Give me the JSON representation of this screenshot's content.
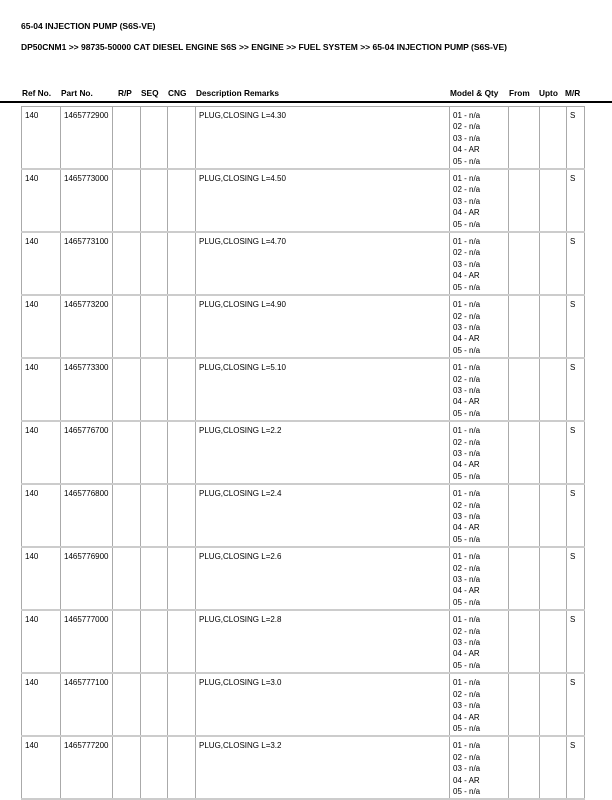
{
  "title": "65-04 INJECTION PUMP (S6S-VE)",
  "breadcrumb": "DP50CNM1 >> 98735-50000 CAT DIESEL ENGINE S6S >> ENGINE >> FUEL SYSTEM >> 65-04 INJECTION PUMP (S6S-VE)",
  "headers": {
    "ref": "Ref No.",
    "part": "Part No.",
    "rp": "R/P",
    "seq": "SEQ",
    "cng": "CNG",
    "desc": "Description Remarks",
    "model": "Model & Qty",
    "from": "From",
    "upto": "Upto",
    "mr": "M/R"
  },
  "model_qty": [
    "01 - n/a",
    "02 - n/a",
    "03 - n/a",
    "04 - AR",
    "05 - n/a"
  ],
  "rows": [
    {
      "ref": "140",
      "part": "1465772900",
      "desc": "PLUG,CLOSING L=4.30",
      "mr": "S"
    },
    {
      "ref": "140",
      "part": "1465773000",
      "desc": "PLUG,CLOSING L=4.50",
      "mr": "S"
    },
    {
      "ref": "140",
      "part": "1465773100",
      "desc": "PLUG,CLOSING L=4.70",
      "mr": "S"
    },
    {
      "ref": "140",
      "part": "1465773200",
      "desc": "PLUG,CLOSING L=4.90",
      "mr": "S"
    },
    {
      "ref": "140",
      "part": "1465773300",
      "desc": "PLUG,CLOSING L=5.10",
      "mr": "S"
    },
    {
      "ref": "140",
      "part": "1465776700",
      "desc": "PLUG,CLOSING L=2.2",
      "mr": "S"
    },
    {
      "ref": "140",
      "part": "1465776800",
      "desc": "PLUG,CLOSING L=2.4",
      "mr": "S"
    },
    {
      "ref": "140",
      "part": "1465776900",
      "desc": "PLUG,CLOSING L=2.6",
      "mr": "S"
    },
    {
      "ref": "140",
      "part": "1465777000",
      "desc": "PLUG,CLOSING L=2.8",
      "mr": "S"
    },
    {
      "ref": "140",
      "part": "1465777100",
      "desc": "PLUG,CLOSING L=3.0",
      "mr": "S"
    },
    {
      "ref": "140",
      "part": "1465777200",
      "desc": "PLUG,CLOSING L=3.2",
      "mr": "S"
    }
  ]
}
